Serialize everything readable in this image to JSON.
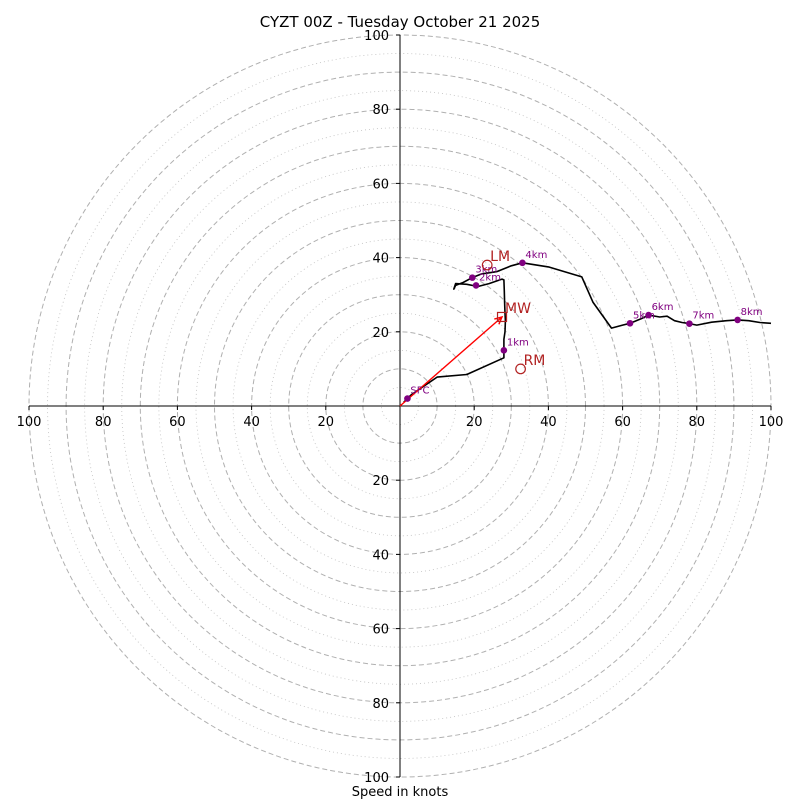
{
  "chart_data": {
    "type": "scatter",
    "subtype": "hodograph",
    "title": "CYZT 00Z - Tuesday October 21 2025",
    "xlabel": "Speed in knots",
    "ylabel": "",
    "xlim": [
      -100,
      100
    ],
    "ylim": [
      -100,
      100
    ],
    "grid": {
      "dashed_rings": [
        10,
        20,
        30,
        40,
        50,
        60,
        70,
        80,
        90,
        100
      ],
      "dotted_rings": [
        5,
        15,
        25,
        35,
        45,
        55,
        65,
        75,
        85,
        95
      ]
    },
    "ticks": {
      "x": [
        {
          "value": -100,
          "label": "100"
        },
        {
          "value": -80,
          "label": "80"
        },
        {
          "value": -60,
          "label": "60"
        },
        {
          "value": -40,
          "label": "40"
        },
        {
          "value": -20,
          "label": "20"
        },
        {
          "value": 20,
          "label": "20"
        },
        {
          "value": 40,
          "label": "40"
        },
        {
          "value": 60,
          "label": "60"
        },
        {
          "value": 80,
          "label": "80"
        },
        {
          "value": 100,
          "label": "100"
        }
      ],
      "y": [
        {
          "value": 100,
          "label": "100"
        },
        {
          "value": 80,
          "label": "80"
        },
        {
          "value": 60,
          "label": "60"
        },
        {
          "value": 40,
          "label": "40"
        },
        {
          "value": 20,
          "label": "20"
        },
        {
          "value": -20,
          "label": "20"
        },
        {
          "value": -40,
          "label": "40"
        },
        {
          "value": -60,
          "label": "60"
        },
        {
          "value": -80,
          "label": "80"
        },
        {
          "value": -100,
          "label": "100"
        }
      ]
    },
    "series": [
      {
        "name": "hodograph",
        "color": "#000000",
        "points": [
          [
            1.0,
            1.0
          ],
          [
            2.0,
            2.0
          ],
          [
            3.0,
            3.0
          ],
          [
            10.0,
            7.8
          ],
          [
            18.0,
            8.5
          ],
          [
            28.0,
            13.0
          ],
          [
            28.0,
            15.0
          ],
          [
            28.0,
            18.0
          ],
          [
            28.3,
            20.0
          ],
          [
            28.4,
            23.0
          ],
          [
            28.3,
            25.0
          ],
          [
            28.2,
            28.0
          ],
          [
            28.1,
            31.0
          ],
          [
            28.0,
            34.0
          ],
          [
            27.5,
            34.2
          ],
          [
            24.0,
            33.0
          ],
          [
            21.0,
            32.2
          ],
          [
            18.0,
            32.8
          ],
          [
            15.0,
            33.0
          ],
          [
            14.5,
            31.5
          ],
          [
            15.0,
            32.5
          ],
          [
            17.0,
            33.3
          ],
          [
            19.5,
            34.6
          ],
          [
            22.0,
            35.6
          ],
          [
            26.0,
            36.2
          ],
          [
            30.0,
            37.8
          ],
          [
            33.0,
            38.6
          ],
          [
            40.0,
            37.5
          ],
          [
            49.0,
            34.8
          ],
          [
            52.0,
            28.0
          ],
          [
            57.0,
            21.0
          ],
          [
            60.0,
            21.8
          ],
          [
            62.0,
            22.3
          ],
          [
            65.0,
            23.5
          ],
          [
            67.0,
            24.5
          ],
          [
            70.0,
            24.0
          ],
          [
            72.0,
            24.2
          ],
          [
            74.0,
            23.0
          ],
          [
            76.0,
            22.5
          ],
          [
            78.0,
            22.2
          ],
          [
            80.0,
            21.8
          ],
          [
            84.0,
            22.6
          ],
          [
            88.0,
            23.0
          ],
          [
            91.0,
            23.2
          ],
          [
            94.0,
            23.0
          ],
          [
            97.0,
            22.5
          ],
          [
            100.0,
            22.3
          ]
        ]
      },
      {
        "name": "mean-wind-vector",
        "color": "#ff0000",
        "points": [
          [
            0,
            0
          ],
          [
            27.5,
            24.0
          ]
        ]
      }
    ],
    "height_labels": [
      {
        "label": "SFC",
        "u": 2.0,
        "v": 2.0
      },
      {
        "label": "1km",
        "u": 28.0,
        "v": 15.0
      },
      {
        "label": "2km",
        "u": 20.5,
        "v": 32.5
      },
      {
        "label": "3km",
        "u": 19.5,
        "v": 34.6
      },
      {
        "label": "4km",
        "u": 33.0,
        "v": 38.6
      },
      {
        "label": "5km",
        "u": 62.0,
        "v": 22.3
      },
      {
        "label": "6km",
        "u": 67.0,
        "v": 24.5
      },
      {
        "label": "7km",
        "u": 78.0,
        "v": 22.2
      },
      {
        "label": "8km",
        "u": 91.0,
        "v": 23.2
      }
    ],
    "storm_motion": [
      {
        "label": "LM",
        "u": 23.5,
        "v": 38.0,
        "marker": "circle"
      },
      {
        "label": "MW",
        "u": 27.5,
        "v": 24.0,
        "marker": "square"
      },
      {
        "label": "RM",
        "u": 32.5,
        "v": 10.0,
        "marker": "circle"
      }
    ],
    "colors": {
      "grid": "#b0b0b0",
      "height_marker": "#800080",
      "storm_marker": "#b22222",
      "axis": "#000000"
    }
  }
}
